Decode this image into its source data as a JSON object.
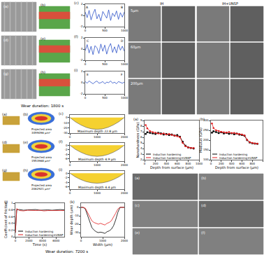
{
  "chart_data": [
    {
      "type": "line",
      "label": "(c)",
      "x": [
        0,
        50,
        100,
        150,
        200,
        250,
        300,
        350,
        400,
        450,
        500,
        550,
        600,
        650,
        700,
        750,
        800,
        850,
        900,
        950,
        1000
      ],
      "xlim": [
        0,
        1000
      ],
      "xticks": [
        0,
        500,
        1000
      ],
      "ylim": [
        -2,
        2
      ],
      "yticks": [
        -2,
        0,
        2
      ],
      "series": [
        {
          "color": "#2b50c8",
          "values": [
            0.6,
            -0.4,
            0.9,
            -0.8,
            0.3,
            1.1,
            -0.6,
            0.2,
            -1.0,
            0.7,
            0.1,
            -0.5,
            1.0,
            -0.9,
            0.4,
            -0.2,
            0.8,
            -0.7,
            0.5,
            -0.3,
            0.6
          ]
        }
      ],
      "annotations": [
        {
          "text": "A",
          "x": 60,
          "y": 1.5
        },
        {
          "text": "B",
          "x": 940,
          "y": 1.5
        }
      ]
    },
    {
      "type": "line",
      "label": "(f)",
      "x": [
        0,
        50,
        100,
        150,
        200,
        250,
        300,
        350,
        400,
        450,
        500,
        550,
        600,
        650,
        700,
        750,
        800,
        850,
        900,
        950,
        1000
      ],
      "xlim": [
        0,
        1000
      ],
      "xticks": [
        0,
        500,
        1000
      ],
      "ylim": [
        -2,
        2
      ],
      "yticks": [
        -2,
        0,
        2
      ],
      "series": [
        {
          "color": "#2b50c8",
          "values": [
            -0.3,
            0.8,
            -0.7,
            0.5,
            -1.0,
            0.6,
            0.2,
            -0.8,
            0.9,
            -0.4,
            0.7,
            -0.9,
            0.3,
            1.0,
            -0.6,
            0.4,
            -0.7,
            0.8,
            -0.2,
            0.5,
            -0.4
          ]
        }
      ],
      "annotations": [
        {
          "text": "C",
          "x": 60,
          "y": 1.5
        },
        {
          "text": "D",
          "x": 940,
          "y": 1.5
        }
      ]
    },
    {
      "type": "line",
      "label": "(i)",
      "x": [
        0,
        50,
        100,
        150,
        200,
        250,
        300,
        350,
        400,
        450,
        500,
        550,
        600,
        650,
        700,
        750,
        800,
        850,
        900,
        950,
        1000
      ],
      "xlim": [
        0,
        1000
      ],
      "xticks": [
        0,
        500,
        1000
      ],
      "ylim": [
        -2,
        2
      ],
      "yticks": [
        -2,
        0,
        2
      ],
      "series": [
        {
          "color": "#2b50c8",
          "values": [
            0.2,
            -0.1,
            0.3,
            0.0,
            -0.2,
            0.1,
            0.3,
            -0.1,
            0.0,
            0.2,
            -0.2,
            0.1,
            0.0,
            0.3,
            -0.1,
            0.1,
            -0.2,
            0.2,
            0.0,
            -0.1,
            0.1
          ]
        }
      ],
      "annotations": [
        {
          "text": "E",
          "x": 60,
          "y": 1.5
        },
        {
          "text": "F",
          "x": 940,
          "y": 1.5
        }
      ]
    },
    {
      "type": "area",
      "label": "(c)",
      "x": [
        0,
        200,
        400,
        600,
        800,
        1000,
        1200,
        1400,
        1600,
        1800,
        2000
      ],
      "xlim": [
        0,
        2000
      ],
      "xticks": [
        0,
        1000,
        2000
      ],
      "ylim": [
        -30,
        5
      ],
      "yticks": [
        -30,
        -20,
        -10,
        0
      ],
      "series": [
        {
          "color": "#f5d130",
          "values": [
            0,
            -8.2,
            -14.3,
            -19.0,
            -21.9,
            -22.8,
            -21.9,
            -19.0,
            -14.3,
            -8.2,
            0
          ]
        }
      ],
      "annotations": [
        {
          "text": "Maximum depth 22.8 μm",
          "x": 1000,
          "y": -26.5
        }
      ]
    },
    {
      "type": "area",
      "label": "(f)",
      "x": [
        0,
        200,
        400,
        600,
        800,
        1000,
        1200,
        1400,
        1600,
        1800,
        2000
      ],
      "xlim": [
        0,
        2000
      ],
      "xticks": [
        0,
        1000,
        2000
      ],
      "ylim": [
        -7,
        1
      ],
      "yticks": [
        -6,
        -4,
        -2,
        0
      ],
      "series": [
        {
          "color": "#f5d130",
          "values": [
            0,
            -1.8,
            -3.1,
            -4.1,
            -4.7,
            -4.9,
            -4.7,
            -4.1,
            -3.1,
            -1.8,
            0
          ]
        }
      ],
      "annotations": [
        {
          "text": "Maximum depth 4.9 μm",
          "x": 1000,
          "y": -6.1
        }
      ]
    },
    {
      "type": "area",
      "label": "(i)",
      "x": [
        0,
        200,
        400,
        600,
        800,
        1000,
        1200,
        1400,
        1600,
        1800,
        2000
      ],
      "xlim": [
        0,
        2000
      ],
      "xticks": [
        0,
        1000,
        2000
      ],
      "ylim": [
        -7,
        1
      ],
      "yticks": [
        -6,
        -4,
        -2,
        0
      ],
      "series": [
        {
          "color": "#f5d130",
          "values": [
            0,
            -1.6,
            -2.8,
            -3.7,
            -4.2,
            -4.4,
            -4.2,
            -3.7,
            -2.8,
            -1.6,
            0
          ]
        }
      ],
      "annotations": [
        {
          "text": "Maximum depth 4.4 μm",
          "x": 1000,
          "y": -6.1
        }
      ]
    },
    {
      "type": "line",
      "label": "(a)",
      "xlabel": "Depth from surface (μm)",
      "ylabel": "Nanohardness (GPa)",
      "x": [
        20,
        50,
        100,
        150,
        200,
        250,
        300,
        350,
        400,
        450,
        500,
        550,
        600,
        650,
        700,
        750,
        800,
        850,
        900
      ],
      "xlim": [
        0,
        1000
      ],
      "xticks": [
        0,
        200,
        400,
        600,
        800,
        1000
      ],
      "ylim": [
        2,
        9
      ],
      "yticks": [
        2,
        3,
        4,
        5,
        6,
        7,
        8,
        9
      ],
      "legend": "lower left",
      "series": [
        {
          "name": "Induction hardening",
          "color": "#000000",
          "marker": "square",
          "values": [
            6.6,
            6.9,
            6.8,
            6.7,
            6.6,
            6.8,
            6.7,
            6.5,
            6.6,
            6.4,
            6.5,
            6.3,
            6.4,
            6.1,
            5.2,
            4.5,
            4.2,
            4.1,
            4.0
          ]
        },
        {
          "name": "Induction hardening+UNSP",
          "color": "#e31a1c",
          "marker": "circle",
          "values": [
            8.2,
            7.6,
            7.1,
            6.9,
            6.8,
            6.7,
            6.6,
            6.7,
            6.5,
            6.6,
            6.4,
            6.3,
            6.2,
            6.0,
            5.0,
            4.4,
            4.2,
            4.1,
            4.1
          ]
        }
      ]
    },
    {
      "type": "line",
      "label": "(b)",
      "xlabel": "Depth from surface (μm)",
      "ylabel": "Modulus (GPa)",
      "x": [
        20,
        50,
        100,
        150,
        200,
        250,
        300,
        350,
        400,
        450,
        500,
        550,
        600,
        650,
        700,
        750,
        800,
        850,
        900
      ],
      "xlim": [
        0,
        1000
      ],
      "xticks": [
        0,
        200,
        400,
        600,
        800,
        1000
      ],
      "ylim": [
        100,
        300
      ],
      "yticks": [
        100,
        150,
        200,
        250,
        300
      ],
      "legend": "lower left",
      "series": [
        {
          "name": "Induction hardening",
          "color": "#000000",
          "marker": "square",
          "values": [
            238,
            245,
            241,
            236,
            240,
            234,
            237,
            232,
            235,
            230,
            233,
            228,
            226,
            222,
            200,
            188,
            184,
            182,
            181
          ]
        },
        {
          "name": "Induction hardening+UNSP",
          "color": "#e31a1c",
          "marker": "circle",
          "values": [
            285,
            262,
            250,
            246,
            242,
            240,
            238,
            241,
            236,
            237,
            233,
            231,
            229,
            224,
            202,
            190,
            186,
            183,
            182
          ]
        }
      ]
    },
    {
      "type": "line",
      "label": "(j)",
      "xlabel": "Time (s)",
      "ylabel": "Coefficient of friction",
      "x": [
        0,
        200,
        600,
        1200,
        1800,
        2400,
        3000,
        3600,
        4200,
        4800,
        5400,
        6000,
        6600,
        7200
      ],
      "xlim": [
        0,
        7200
      ],
      "xticks": [
        0,
        2000,
        4000,
        6000
      ],
      "ylim": [
        0,
        1
      ],
      "yticks": [
        0,
        0.2,
        0.4,
        0.6,
        0.8,
        1
      ],
      "legend": "lower right",
      "series": [
        {
          "name": "Induction hardening",
          "color": "#000000",
          "values": [
            0.12,
            0.8,
            0.81,
            0.79,
            0.8,
            0.8,
            0.81,
            0.79,
            0.8,
            0.8,
            0.79,
            0.8,
            0.81,
            0.8
          ]
        },
        {
          "name": "Induction hardening+UNSP",
          "color": "#e31a1c",
          "values": [
            0.12,
            0.84,
            0.78,
            0.77,
            0.79,
            0.78,
            0.78,
            0.79,
            0.77,
            0.78,
            0.78,
            0.79,
            0.78,
            0.78
          ]
        }
      ]
    },
    {
      "type": "line",
      "label": "(k)",
      "xlabel": "Width (μm)",
      "ylabel": "Wear depth (μm)",
      "x": [
        0,
        100,
        200,
        300,
        400,
        500,
        600,
        700,
        800,
        900,
        1000,
        1100,
        1200,
        1300,
        1400,
        1500,
        1600,
        1700,
        1800,
        1900,
        2000
      ],
      "xlim": [
        0,
        2000
      ],
      "xticks": [
        0,
        1000,
        2000
      ],
      "ylim": [
        -35,
        5
      ],
      "yticks": [
        -30,
        -20,
        -10,
        0
      ],
      "series": [
        {
          "name": "Induction hardening",
          "color": "#000000",
          "values": [
            0,
            0,
            -2,
            -10,
            -18,
            -24,
            -27,
            -29,
            -30,
            -29.5,
            -30,
            -31,
            -29,
            -28,
            -26,
            -22,
            -15,
            -6,
            0,
            0,
            0
          ]
        },
        {
          "name": "Induction hardening+UNSP",
          "color": "#e31a1c",
          "values": [
            0,
            0,
            -1,
            -6,
            -12,
            -16,
            -18,
            -19,
            -20,
            -19,
            -20,
            -21,
            -19,
            -18,
            -16,
            -12,
            -7,
            -2,
            0,
            0,
            0
          ]
        }
      ]
    }
  ],
  "image_panels": {
    "surface_rows": [
      {
        "sem": "(a)",
        "surface": "(b)"
      },
      {
        "sem": "(d)",
        "surface": "(e)"
      },
      {
        "sem": "(g)",
        "surface": "(h)"
      }
    ],
    "tem_grid": {
      "columns": [
        "IH",
        "IH+UNSP"
      ],
      "rows": [
        "5μm",
        "60μm",
        "200μm"
      ]
    },
    "wear_1800": {
      "title": "Wear duration: 1800 s",
      "rows": [
        {
          "model": "(a)",
          "contour": "(b)",
          "area_label": "Projected area",
          "area": "3499096 μm²"
        },
        {
          "model": "(d)",
          "contour": "(e)",
          "area_label": "Projected area",
          "area": "1553968 μm²"
        },
        {
          "model": "(g)",
          "contour": "(h)",
          "area_label": "Projected area",
          "area": "2062921 μm²"
        }
      ]
    },
    "wear_7200_title": "Wear duration: 7200 s",
    "tem_panels": [
      "(a)",
      "(b)",
      "(c)",
      "(d)",
      "(e)",
      "(f)"
    ]
  }
}
